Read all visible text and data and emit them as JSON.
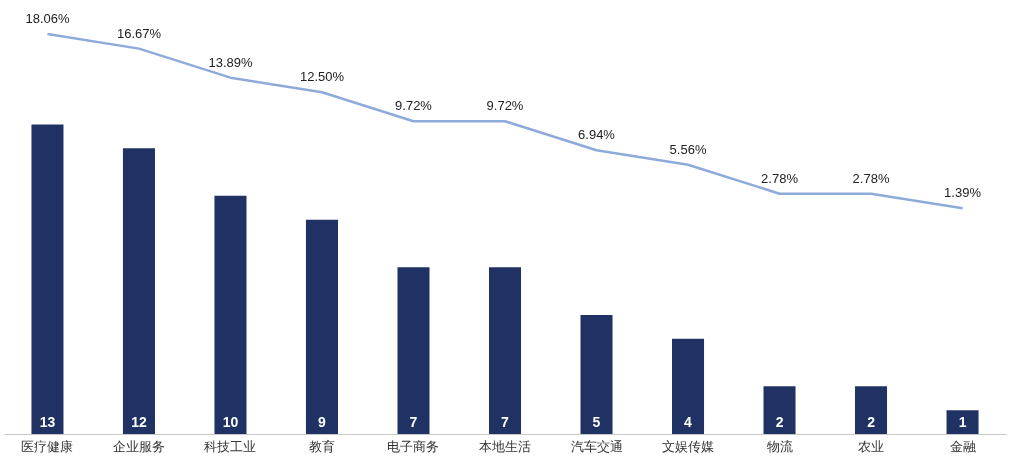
{
  "chart_data": {
    "type": "bar",
    "categories": [
      "医疗健康",
      "企业服务",
      "科技工业",
      "教育",
      "电子商务",
      "本地生活",
      "汽车交通",
      "文娱传媒",
      "物流",
      "农业",
      "金融"
    ],
    "tick_labels": "x",
    "series": [
      {
        "color": "#203264",
        "values": [
          13,
          12,
          10,
          9,
          7,
          7,
          5,
          4,
          2,
          2,
          1
        ],
        "value_labels": [
          "13",
          "12",
          "10",
          "9",
          "7",
          "7",
          "5",
          "4",
          "2",
          "2",
          "1"
        ]
      },
      {
        "type": "line",
        "axis": "y2",
        "color": "#8eaadb",
        "values": [
          18.06,
          16.67,
          13.89,
          12.5,
          9.72,
          9.72,
          6.94,
          5.56,
          2.78,
          2.78,
          1.39
        ],
        "value_labels": [
          "18.06%",
          "16.67%",
          "13.89%",
          "12.50%",
          "9.72%",
          "9.72%",
          "6.94%",
          "5.56%",
          "2.78%",
          "2.78%",
          "1.39%"
        ]
      }
    ]
  }
}
